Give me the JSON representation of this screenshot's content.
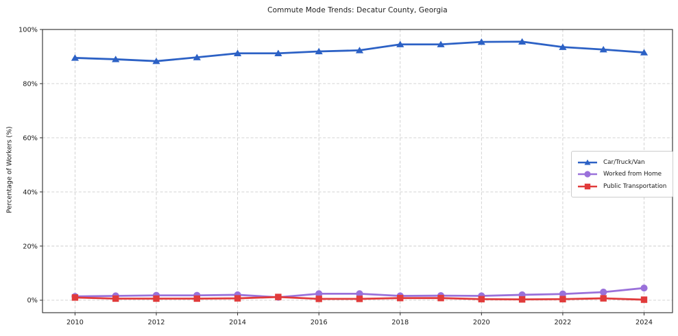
{
  "chart_data": {
    "type": "line",
    "title": "Commute Mode Trends: Decatur County, Georgia",
    "ylabel": "Percentage of Workers (%)",
    "xlabel": "",
    "x": [
      2010,
      2011,
      2012,
      2013,
      2014,
      2015,
      2016,
      2017,
      2018,
      2019,
      2020,
      2021,
      2022,
      2023,
      2024
    ],
    "x_ticks": [
      2010,
      2012,
      2014,
      2016,
      2018,
      2020,
      2022,
      2024
    ],
    "y_ticks": [
      0,
      20,
      40,
      60,
      80,
      100
    ],
    "y_tick_suffix": "%",
    "xlim": [
      2009.2,
      2024.7
    ],
    "ylim": [
      -4.6,
      100
    ],
    "grid": true,
    "legend_position": "middle-right",
    "series": [
      {
        "name": "Car/Truck/Van",
        "slug": "car-truck-van",
        "color": "#2c61c5",
        "marker": "triangle",
        "values": [
          89.5,
          89.0,
          88.3,
          89.7,
          91.2,
          91.2,
          91.9,
          92.3,
          94.5,
          94.5,
          95.4,
          95.5,
          93.5,
          92.6,
          91.5
        ]
      },
      {
        "name": "Worked from Home",
        "slug": "worked-from-home",
        "color": "#9a71da",
        "marker": "circle",
        "values": [
          1.4,
          1.6,
          1.8,
          1.8,
          2.0,
          1.1,
          2.4,
          2.4,
          1.6,
          1.7,
          1.6,
          2.0,
          2.3,
          3.0,
          4.5
        ]
      },
      {
        "name": "Public Transportation",
        "slug": "public-transportation",
        "color": "#e13b3b",
        "marker": "square",
        "values": [
          1.0,
          0.6,
          0.6,
          0.6,
          0.7,
          1.2,
          0.5,
          0.5,
          0.8,
          0.8,
          0.4,
          0.3,
          0.4,
          0.7,
          0.2
        ]
      }
    ],
    "style": {
      "grid_color": "#cdcdcd",
      "spine_color": "#2b2b2b",
      "text_color": "#1a1a1a"
    }
  }
}
